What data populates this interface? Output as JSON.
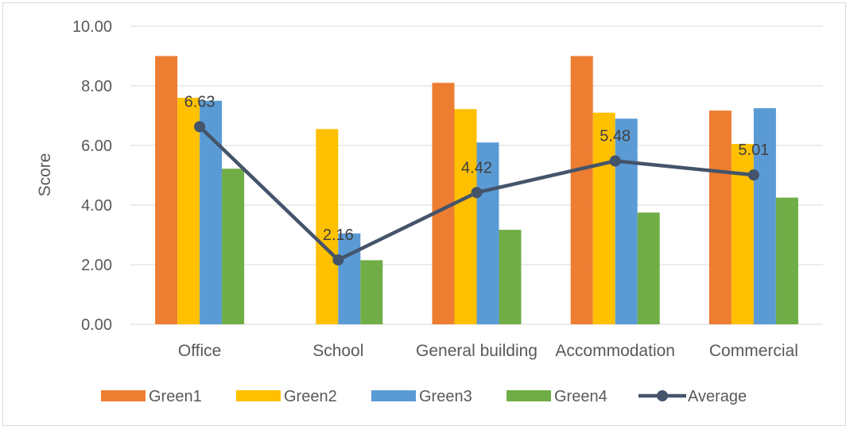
{
  "chart_data": {
    "type": "bar",
    "title": "",
    "xlabel": "",
    "ylabel": "Score",
    "ylim": [
      0,
      10
    ],
    "y_ticks": [
      "0.00",
      "2.00",
      "4.00",
      "6.00",
      "8.00",
      "10.00"
    ],
    "grid": true,
    "legend_position": "bottom",
    "categories": [
      "Office",
      "School",
      "General building",
      "Accommodation",
      "Commercial"
    ],
    "series": [
      {
        "name": "Green1",
        "kind": "bar",
        "color": "#ed7d31",
        "values": [
          9.0,
          0,
          8.1,
          9.0,
          7.17
        ]
      },
      {
        "name": "Green2",
        "kind": "bar",
        "color": "#ffc000",
        "values": [
          7.6,
          6.55,
          7.22,
          7.1,
          6.05
        ]
      },
      {
        "name": "Green3",
        "kind": "bar",
        "color": "#5b9bd5",
        "values": [
          7.5,
          3.05,
          6.1,
          6.9,
          7.25
        ]
      },
      {
        "name": "Green4",
        "kind": "bar",
        "color": "#70ad47",
        "values": [
          5.22,
          2.15,
          3.17,
          3.75,
          4.25
        ]
      },
      {
        "name": "Average",
        "kind": "line",
        "color": "#44546a",
        "values": [
          6.63,
          2.16,
          4.42,
          5.48,
          5.01
        ],
        "data_labels": [
          "6.63",
          "2.16",
          "4.42",
          "5.48",
          "5.01"
        ]
      }
    ]
  }
}
